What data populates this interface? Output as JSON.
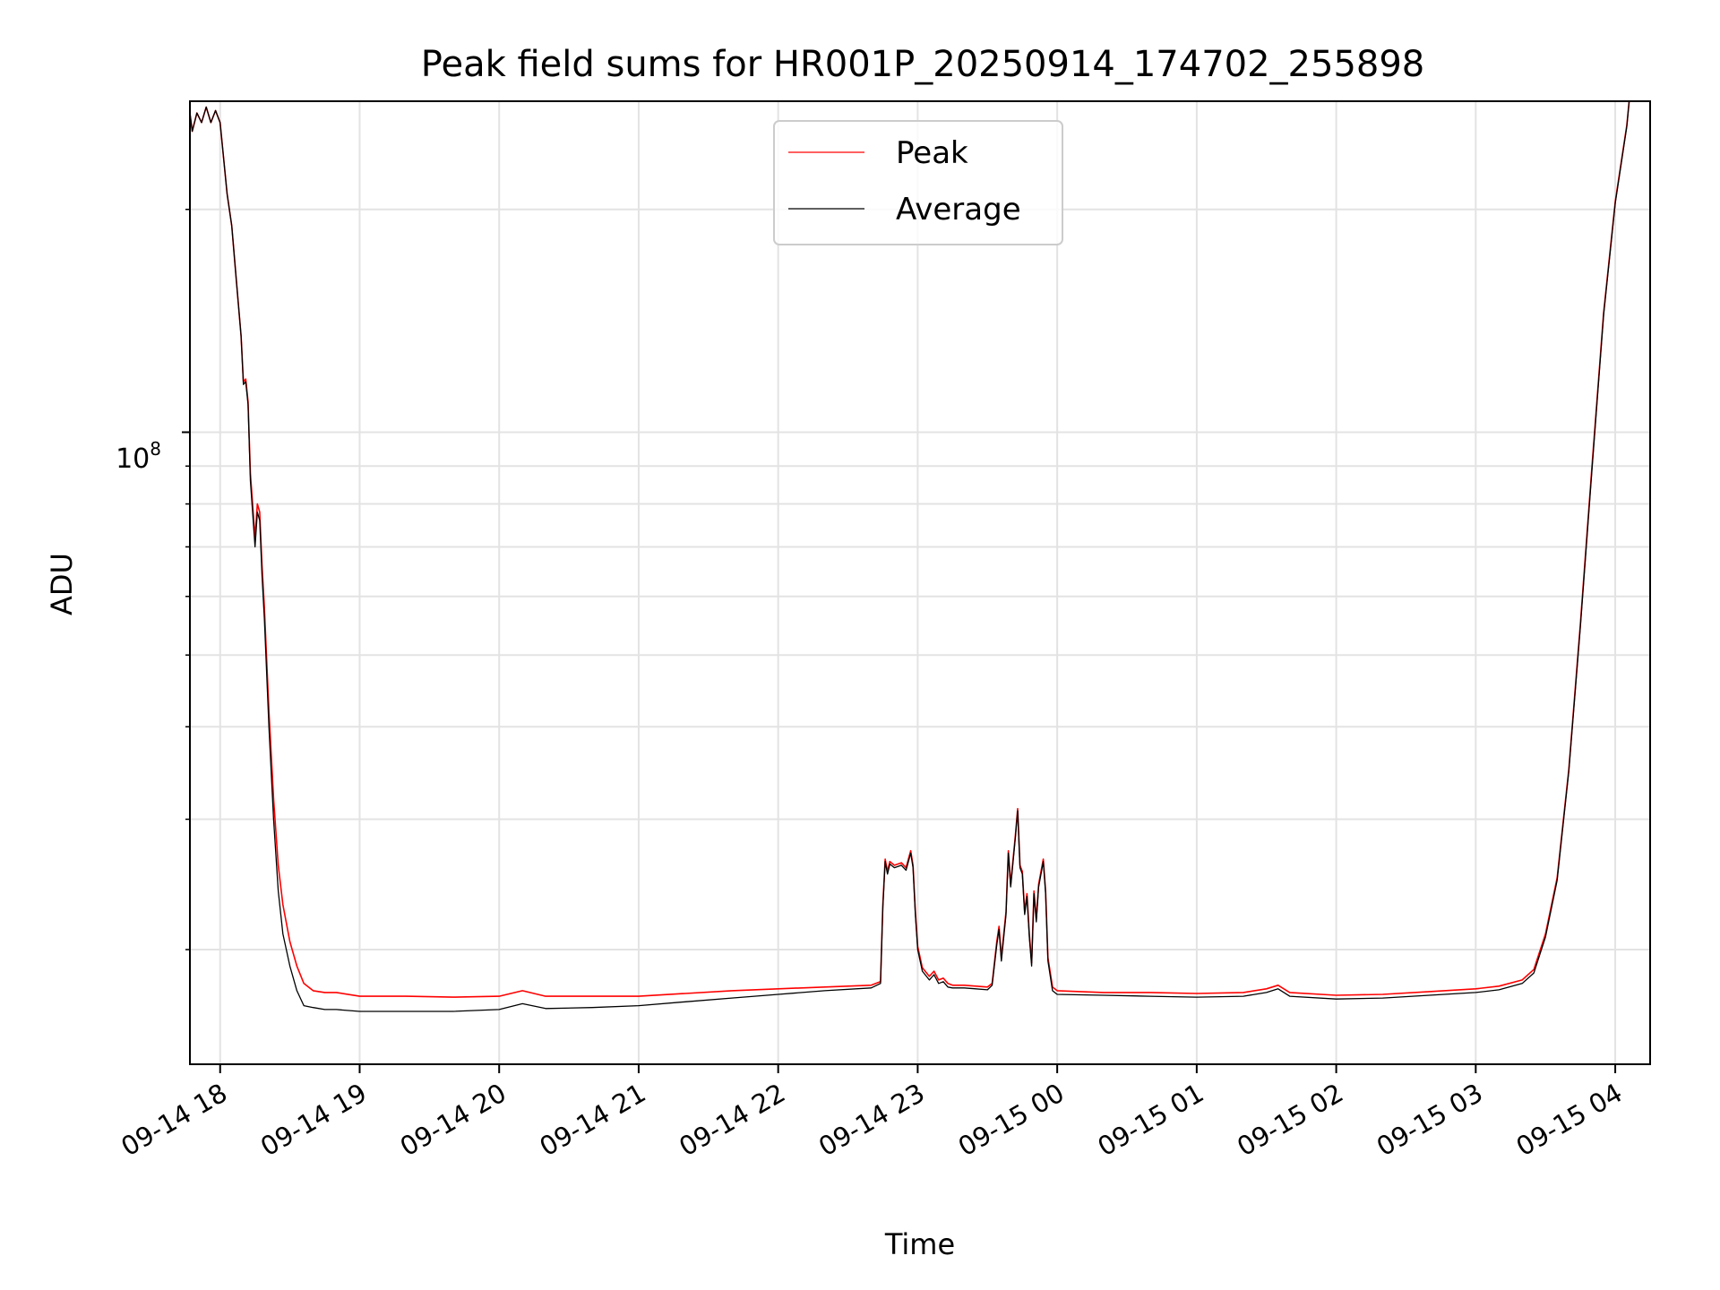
{
  "chart_data": {
    "type": "line",
    "title": "Peak field sums for HR001P_20250914_174702_255898",
    "xlabel": "Time",
    "ylabel": "ADU",
    "y_scale": "log",
    "y_tick_major": {
      "label_base": "10",
      "label_exp": "8",
      "value": 100000000
    },
    "y_minor_ticks": [
      20000000,
      30000000,
      40000000,
      50000000,
      60000000,
      70000000,
      80000000,
      90000000,
      200000000
    ],
    "ylim": [
      14000000,
      280000000
    ],
    "xlim": [
      "2025-09-14 17:47",
      "2025-09-15 04:15"
    ],
    "x_ticks": [
      {
        "time": "2025-09-14 18:00",
        "label": "09-14 18"
      },
      {
        "time": "2025-09-14 19:00",
        "label": "09-14 19"
      },
      {
        "time": "2025-09-14 20:00",
        "label": "09-14 20"
      },
      {
        "time": "2025-09-14 21:00",
        "label": "09-14 21"
      },
      {
        "time": "2025-09-14 22:00",
        "label": "09-14 22"
      },
      {
        "time": "2025-09-14 23:00",
        "label": "09-14 23"
      },
      {
        "time": "2025-09-15 00:00",
        "label": "09-15 00"
      },
      {
        "time": "2025-09-15 01:00",
        "label": "09-15 01"
      },
      {
        "time": "2025-09-15 02:00",
        "label": "09-15 02"
      },
      {
        "time": "2025-09-15 03:00",
        "label": "09-15 03"
      },
      {
        "time": "2025-09-15 04:00",
        "label": "09-15 04"
      }
    ],
    "grid": true,
    "legend_position": "top-center",
    "series": [
      {
        "name": "Peak",
        "color": "#ff0000",
        "points": [
          [
            "2025-09-14 17:47",
            270000000
          ],
          [
            "2025-09-14 17:48",
            255000000
          ],
          [
            "2025-09-14 17:50",
            270000000
          ],
          [
            "2025-09-14 17:52",
            262000000
          ],
          [
            "2025-09-14 17:54",
            275000000
          ],
          [
            "2025-09-14 17:56",
            262000000
          ],
          [
            "2025-09-14 17:58",
            272000000
          ],
          [
            "2025-09-14 18:00",
            262000000
          ],
          [
            "2025-09-14 18:03",
            210000000
          ],
          [
            "2025-09-14 18:05",
            190000000
          ],
          [
            "2025-09-14 18:07",
            160000000
          ],
          [
            "2025-09-14 18:09",
            135000000
          ],
          [
            "2025-09-14 18:10",
            117000000
          ],
          [
            "2025-09-14 18:11",
            118000000
          ],
          [
            "2025-09-14 18:12",
            110000000
          ],
          [
            "2025-09-14 18:13",
            88000000
          ],
          [
            "2025-09-14 18:15",
            72000000
          ],
          [
            "2025-09-14 18:16",
            80000000
          ],
          [
            "2025-09-14 18:17",
            78000000
          ],
          [
            "2025-09-14 18:18",
            66000000
          ],
          [
            "2025-09-14 18:19",
            58000000
          ],
          [
            "2025-09-14 18:21",
            42000000
          ],
          [
            "2025-09-14 18:23",
            32000000
          ],
          [
            "2025-09-14 18:25",
            26000000
          ],
          [
            "2025-09-14 18:27",
            23000000
          ],
          [
            "2025-09-14 18:30",
            20500000
          ],
          [
            "2025-09-14 18:33",
            19000000
          ],
          [
            "2025-09-14 18:36",
            18000000
          ],
          [
            "2025-09-14 18:40",
            17600000
          ],
          [
            "2025-09-14 18:45",
            17500000
          ],
          [
            "2025-09-14 18:50",
            17500000
          ],
          [
            "2025-09-14 19:00",
            17300000
          ],
          [
            "2025-09-14 19:20",
            17300000
          ],
          [
            "2025-09-14 19:40",
            17250000
          ],
          [
            "2025-09-14 20:00",
            17300000
          ],
          [
            "2025-09-14 20:10",
            17600000
          ],
          [
            "2025-09-14 20:20",
            17300000
          ],
          [
            "2025-09-14 20:40",
            17300000
          ],
          [
            "2025-09-14 21:00",
            17300000
          ],
          [
            "2025-09-14 21:20",
            17450000
          ],
          [
            "2025-09-14 21:40",
            17600000
          ],
          [
            "2025-09-14 22:00",
            17700000
          ],
          [
            "2025-09-14 22:20",
            17800000
          ],
          [
            "2025-09-14 22:40",
            17900000
          ],
          [
            "2025-09-14 22:44",
            18100000
          ],
          [
            "2025-09-14 22:45",
            23000000
          ],
          [
            "2025-09-14 22:46",
            26500000
          ],
          [
            "2025-09-14 22:47",
            25500000
          ],
          [
            "2025-09-14 22:48",
            26300000
          ],
          [
            "2025-09-14 22:50",
            26000000
          ],
          [
            "2025-09-14 22:53",
            26200000
          ],
          [
            "2025-09-14 22:55",
            25800000
          ],
          [
            "2025-09-14 22:57",
            27200000
          ],
          [
            "2025-09-14 22:58",
            26000000
          ],
          [
            "2025-09-14 22:59",
            22500000
          ],
          [
            "2025-09-14 23:00",
            20200000
          ],
          [
            "2025-09-14 23:02",
            18900000
          ],
          [
            "2025-09-14 23:05",
            18400000
          ],
          [
            "2025-09-14 23:07",
            18700000
          ],
          [
            "2025-09-14 23:09",
            18200000
          ],
          [
            "2025-09-14 23:11",
            18300000
          ],
          [
            "2025-09-14 23:13",
            18000000
          ],
          [
            "2025-09-14 23:15",
            17900000
          ],
          [
            "2025-09-14 23:20",
            17900000
          ],
          [
            "2025-09-14 23:25",
            17850000
          ],
          [
            "2025-09-14 23:30",
            17800000
          ],
          [
            "2025-09-14 23:32",
            18000000
          ],
          [
            "2025-09-14 23:34",
            20500000
          ],
          [
            "2025-09-14 23:35",
            21500000
          ],
          [
            "2025-09-14 23:36",
            19500000
          ],
          [
            "2025-09-14 23:38",
            22500000
          ],
          [
            "2025-09-14 23:39",
            27200000
          ],
          [
            "2025-09-14 23:40",
            24500000
          ],
          [
            "2025-09-14 23:42",
            28500000
          ],
          [
            "2025-09-14 23:43",
            31000000
          ],
          [
            "2025-09-14 23:44",
            26000000
          ],
          [
            "2025-09-14 23:45",
            25500000
          ],
          [
            "2025-09-14 23:46",
            22500000
          ],
          [
            "2025-09-14 23:47",
            23800000
          ],
          [
            "2025-09-14 23:48",
            21000000
          ],
          [
            "2025-09-14 23:49",
            19200000
          ],
          [
            "2025-09-14 23:50",
            24000000
          ],
          [
            "2025-09-14 23:51",
            22000000
          ],
          [
            "2025-09-14 23:52",
            24500000
          ],
          [
            "2025-09-14 23:54",
            26500000
          ],
          [
            "2025-09-14 23:55",
            24000000
          ],
          [
            "2025-09-14 23:56",
            19500000
          ],
          [
            "2025-09-14 23:58",
            17800000
          ],
          [
            "2025-09-15 00:00",
            17600000
          ],
          [
            "2025-09-15 00:20",
            17500000
          ],
          [
            "2025-09-15 00:40",
            17500000
          ],
          [
            "2025-09-15 01:00",
            17450000
          ],
          [
            "2025-09-15 01:20",
            17500000
          ],
          [
            "2025-09-15 01:30",
            17700000
          ],
          [
            "2025-09-15 01:35",
            17900000
          ],
          [
            "2025-09-15 01:40",
            17500000
          ],
          [
            "2025-09-15 02:00",
            17350000
          ],
          [
            "2025-09-15 02:20",
            17400000
          ],
          [
            "2025-09-15 02:40",
            17550000
          ],
          [
            "2025-09-15 03:00",
            17700000
          ],
          [
            "2025-09-15 03:10",
            17850000
          ],
          [
            "2025-09-15 03:20",
            18200000
          ],
          [
            "2025-09-15 03:25",
            18800000
          ],
          [
            "2025-09-15 03:30",
            21000000
          ],
          [
            "2025-09-15 03:35",
            25000000
          ],
          [
            "2025-09-15 03:40",
            35000000
          ],
          [
            "2025-09-15 03:45",
            55000000
          ],
          [
            "2025-09-15 03:50",
            90000000
          ],
          [
            "2025-09-15 03:55",
            145000000
          ],
          [
            "2025-09-15 04:00",
            205000000
          ],
          [
            "2025-09-15 04:05",
            260000000
          ],
          [
            "2025-09-15 04:06",
            280000000
          ]
        ]
      },
      {
        "name": "Average",
        "color": "#000000",
        "points": [
          [
            "2025-09-14 17:47",
            270000000
          ],
          [
            "2025-09-14 17:48",
            255000000
          ],
          [
            "2025-09-14 17:50",
            270000000
          ],
          [
            "2025-09-14 17:52",
            262000000
          ],
          [
            "2025-09-14 17:54",
            275000000
          ],
          [
            "2025-09-14 17:56",
            262000000
          ],
          [
            "2025-09-14 17:58",
            272000000
          ],
          [
            "2025-09-14 18:00",
            262000000
          ],
          [
            "2025-09-14 18:03",
            210000000
          ],
          [
            "2025-09-14 18:05",
            190000000
          ],
          [
            "2025-09-14 18:07",
            160000000
          ],
          [
            "2025-09-14 18:09",
            135000000
          ],
          [
            "2025-09-14 18:10",
            116000000
          ],
          [
            "2025-09-14 18:11",
            117000000
          ],
          [
            "2025-09-14 18:12",
            109000000
          ],
          [
            "2025-09-14 18:13",
            86000000
          ],
          [
            "2025-09-14 18:15",
            70000000
          ],
          [
            "2025-09-14 18:16",
            78000000
          ],
          [
            "2025-09-14 18:17",
            76000000
          ],
          [
            "2025-09-14 18:18",
            64000000
          ],
          [
            "2025-09-14 18:19",
            56000000
          ],
          [
            "2025-09-14 18:21",
            40000000
          ],
          [
            "2025-09-14 18:23",
            30000000
          ],
          [
            "2025-09-14 18:25",
            24000000
          ],
          [
            "2025-09-14 18:27",
            21000000
          ],
          [
            "2025-09-14 18:30",
            19000000
          ],
          [
            "2025-09-14 18:33",
            17600000
          ],
          [
            "2025-09-14 18:36",
            16800000
          ],
          [
            "2025-09-14 18:40",
            16700000
          ],
          [
            "2025-09-14 18:45",
            16600000
          ],
          [
            "2025-09-14 18:50",
            16600000
          ],
          [
            "2025-09-14 19:00",
            16500000
          ],
          [
            "2025-09-14 19:20",
            16500000
          ],
          [
            "2025-09-14 19:40",
            16500000
          ],
          [
            "2025-09-14 20:00",
            16600000
          ],
          [
            "2025-09-14 20:10",
            16900000
          ],
          [
            "2025-09-14 20:20",
            16650000
          ],
          [
            "2025-09-14 20:40",
            16700000
          ],
          [
            "2025-09-14 21:00",
            16800000
          ],
          [
            "2025-09-14 21:20",
            17000000
          ],
          [
            "2025-09-14 21:40",
            17200000
          ],
          [
            "2025-09-14 22:00",
            17400000
          ],
          [
            "2025-09-14 22:20",
            17600000
          ],
          [
            "2025-09-14 22:40",
            17750000
          ],
          [
            "2025-09-14 22:44",
            18000000
          ],
          [
            "2025-09-14 22:45",
            22800000
          ],
          [
            "2025-09-14 22:46",
            26300000
          ],
          [
            "2025-09-14 22:47",
            25300000
          ],
          [
            "2025-09-14 22:48",
            26100000
          ],
          [
            "2025-09-14 22:50",
            25800000
          ],
          [
            "2025-09-14 22:53",
            26000000
          ],
          [
            "2025-09-14 22:55",
            25600000
          ],
          [
            "2025-09-14 22:57",
            27000000
          ],
          [
            "2025-09-14 22:58",
            25800000
          ],
          [
            "2025-09-14 22:59",
            22300000
          ],
          [
            "2025-09-14 23:00",
            20000000
          ],
          [
            "2025-09-14 23:02",
            18700000
          ],
          [
            "2025-09-14 23:05",
            18200000
          ],
          [
            "2025-09-14 23:07",
            18500000
          ],
          [
            "2025-09-14 23:09",
            18000000
          ],
          [
            "2025-09-14 23:11",
            18100000
          ],
          [
            "2025-09-14 23:13",
            17800000
          ],
          [
            "2025-09-14 23:15",
            17750000
          ],
          [
            "2025-09-14 23:20",
            17750000
          ],
          [
            "2025-09-14 23:25",
            17700000
          ],
          [
            "2025-09-14 23:30",
            17650000
          ],
          [
            "2025-09-14 23:32",
            17900000
          ],
          [
            "2025-09-14 23:34",
            20300000
          ],
          [
            "2025-09-14 23:35",
            21300000
          ],
          [
            "2025-09-14 23:36",
            19300000
          ],
          [
            "2025-09-14 23:38",
            22300000
          ],
          [
            "2025-09-14 23:39",
            27000000
          ],
          [
            "2025-09-14 23:40",
            24300000
          ],
          [
            "2025-09-14 23:42",
            28300000
          ],
          [
            "2025-09-14 23:43",
            30800000
          ],
          [
            "2025-09-14 23:44",
            25800000
          ],
          [
            "2025-09-14 23:45",
            25300000
          ],
          [
            "2025-09-14 23:46",
            22300000
          ],
          [
            "2025-09-14 23:47",
            23600000
          ],
          [
            "2025-09-14 23:48",
            20800000
          ],
          [
            "2025-09-14 23:49",
            19000000
          ],
          [
            "2025-09-14 23:50",
            23800000
          ],
          [
            "2025-09-14 23:51",
            21800000
          ],
          [
            "2025-09-14 23:52",
            24300000
          ],
          [
            "2025-09-14 23:54",
            26300000
          ],
          [
            "2025-09-14 23:55",
            23800000
          ],
          [
            "2025-09-14 23:56",
            19300000
          ],
          [
            "2025-09-14 23:58",
            17600000
          ],
          [
            "2025-09-15 00:00",
            17400000
          ],
          [
            "2025-09-15 00:20",
            17350000
          ],
          [
            "2025-09-15 00:40",
            17300000
          ],
          [
            "2025-09-15 01:00",
            17250000
          ],
          [
            "2025-09-15 01:20",
            17300000
          ],
          [
            "2025-09-15 01:30",
            17500000
          ],
          [
            "2025-09-15 01:35",
            17700000
          ],
          [
            "2025-09-15 01:40",
            17300000
          ],
          [
            "2025-09-15 02:00",
            17150000
          ],
          [
            "2025-09-15 02:20",
            17200000
          ],
          [
            "2025-09-15 02:40",
            17350000
          ],
          [
            "2025-09-15 03:00",
            17500000
          ],
          [
            "2025-09-15 03:10",
            17650000
          ],
          [
            "2025-09-15 03:20",
            18000000
          ],
          [
            "2025-09-15 03:25",
            18600000
          ],
          [
            "2025-09-15 03:30",
            20800000
          ],
          [
            "2025-09-15 03:35",
            24800000
          ],
          [
            "2025-09-15 03:40",
            34800000
          ],
          [
            "2025-09-15 03:45",
            54500000
          ],
          [
            "2025-09-15 03:50",
            89000000
          ],
          [
            "2025-09-15 03:55",
            144000000
          ],
          [
            "2025-09-15 04:00",
            204000000
          ],
          [
            "2025-09-15 04:05",
            259000000
          ],
          [
            "2025-09-15 04:06",
            280000000
          ]
        ]
      }
    ]
  }
}
